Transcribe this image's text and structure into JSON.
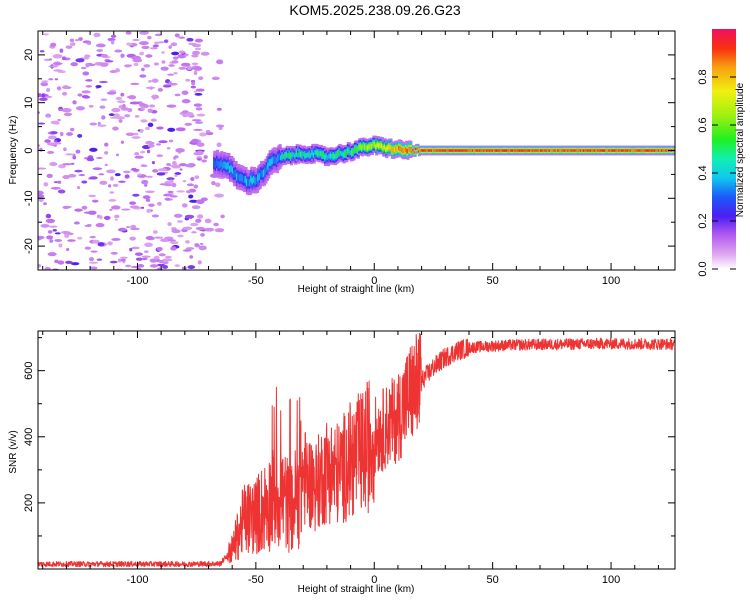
{
  "title": "KOM5.2025.238.09.26.G23",
  "chart_data": [
    {
      "type": "heatmap",
      "name": "spectrogram",
      "xlabel": "Height of straight line (km)",
      "ylabel": "Frequency (Hz)",
      "xlim": [
        -142,
        127
      ],
      "ylim": [
        -25,
        25
      ],
      "xticks": [
        -100,
        -50,
        0,
        50,
        100
      ],
      "yticks": [
        -20,
        -10,
        0,
        10,
        20
      ],
      "colorbar": {
        "label": "Normalized spectral amplitude",
        "range": [
          0,
          1
        ],
        "ticks": [
          "0.0",
          "0.2",
          "0.4",
          "0.6",
          "0.8"
        ],
        "tick_values": [
          0,
          0.2,
          0.4,
          0.6,
          0.8
        ]
      },
      "ridge": {
        "description_points_x": [
          -68,
          -62,
          -58,
          -54,
          -50,
          -47,
          -44,
          -40,
          -36,
          -32,
          -28,
          -24,
          -20,
          -16,
          -12,
          -8,
          -4,
          0,
          4,
          8,
          12,
          16,
          20,
          30,
          127
        ],
        "description_points_y": [
          -2.5,
          -3.5,
          -5.5,
          -6.5,
          -6.0,
          -4.5,
          -2.5,
          -1.5,
          -1.0,
          -0.8,
          -0.6,
          -0.9,
          -1.3,
          -0.8,
          -0.4,
          0.2,
          0.8,
          1.0,
          0.6,
          0.3,
          0.1,
          0.0,
          0.0,
          0.0,
          0.0
        ]
      }
    },
    {
      "type": "line",
      "name": "snr",
      "xlabel": "Height of straight line (km)",
      "ylabel": "SNR (v/v)",
      "xlim": [
        -142,
        127
      ],
      "ylim": [
        0,
        720
      ],
      "xticks": [
        -100,
        -50,
        0,
        50,
        100
      ],
      "yticks": [
        200,
        400,
        600
      ],
      "color": "#ee3333",
      "series": [
        {
          "name": "SNR",
          "envelope_x": [
            -142,
            -80,
            -65,
            -60,
            -55,
            -50,
            -45,
            -40,
            -35,
            -30,
            -25,
            -20,
            -15,
            -10,
            -5,
            0,
            5,
            10,
            15,
            20,
            25,
            30,
            35,
            40,
            50,
            60,
            80,
            100,
            127
          ],
          "envelope_y": [
            15,
            15,
            16,
            60,
            150,
            160,
            200,
            230,
            180,
            280,
            250,
            300,
            290,
            330,
            350,
            400,
            430,
            460,
            530,
            570,
            610,
            640,
            660,
            670,
            675,
            678,
            680,
            682,
            680
          ]
        }
      ]
    }
  ],
  "colors": {
    "plot_border": "#000000",
    "line": "#ee3333"
  }
}
